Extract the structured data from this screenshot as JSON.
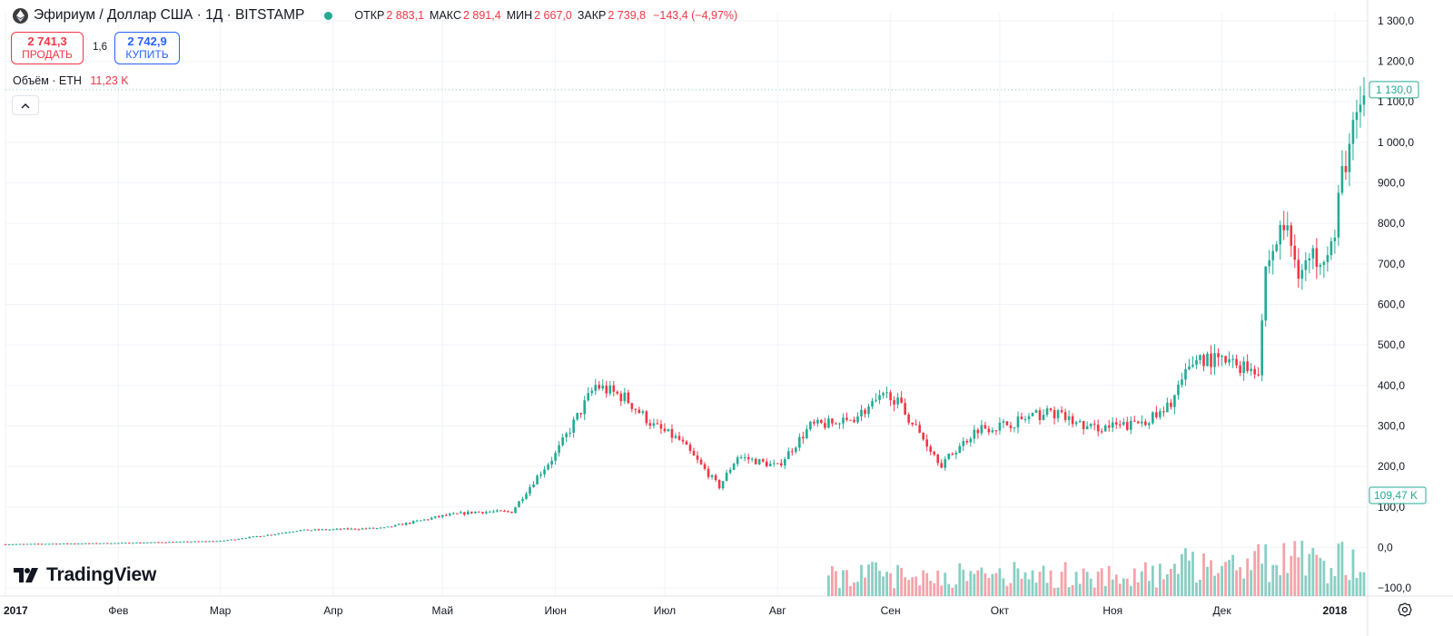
{
  "header": {
    "title": "Эфириум / Доллар США · 1Д · BITSTAMP",
    "open_label": "ОТКР",
    "open_value": "2 883,1",
    "high_label": "МАКС",
    "high_value": "2 891,4",
    "low_label": "МИН",
    "low_value": "2 667,0",
    "close_label": "ЗАКР",
    "close_value": "2 739,8",
    "change": "−143,4 (−4,97%)"
  },
  "trade": {
    "sell_price": "2 741,3",
    "sell_label": "ПРОДАТЬ",
    "spread": "1,6",
    "buy_price": "2 742,9",
    "buy_label": "КУПИТЬ"
  },
  "volume_legend": {
    "label": "Объём · ETH",
    "value": "11,23 K"
  },
  "collapse_icon": "chevron-up-icon",
  "logo": {
    "text": "TradingView",
    "icon": "tradingview-logo-icon"
  },
  "settings_icon": "gear-icon",
  "colors": {
    "up": "#22ab94",
    "down": "#f23645",
    "up_volume": "#89cfc3",
    "down_volume": "#f5a3a9"
  },
  "chart_data": {
    "type": "candlestick",
    "symbol": "Эфириум / Доллар США · 1Д · BITSTAMP",
    "x_range": [
      "2017-01-01",
      "2018-01-10"
    ],
    "x_tick_labels": [
      "2017",
      "Фев",
      "Мар",
      "Апр",
      "Май",
      "Июн",
      "Июл",
      "Авг",
      "Сен",
      "Окт",
      "Ноя",
      "Дек",
      "2018"
    ],
    "y_tick_labels": [
      "1 300,0",
      "1 200,0",
      "1 100,0",
      "1 000,0",
      "900,0",
      "800,0",
      "700,0",
      "600,0",
      "500,0",
      "400,0",
      "300,0",
      "200,0",
      "100,0",
      "0,0",
      "−100,0"
    ],
    "ylim": [
      -120,
      1320
    ],
    "last_price_label": "1 130,0",
    "last_volume_label": "109,47 K",
    "price_keypoints": [
      [
        "2017-01-01",
        8
      ],
      [
        "2017-02-01",
        11
      ],
      [
        "2017-03-01",
        16
      ],
      [
        "2017-03-15",
        32
      ],
      [
        "2017-03-22",
        42
      ],
      [
        "2017-04-15",
        48
      ],
      [
        "2017-05-01",
        78
      ],
      [
        "2017-05-10",
        88
      ],
      [
        "2017-05-20",
        88
      ],
      [
        "2017-05-27",
        175
      ],
      [
        "2017-06-01",
        230
      ],
      [
        "2017-06-12",
        400
      ],
      [
        "2017-06-20",
        370
      ],
      [
        "2017-06-28",
        300
      ],
      [
        "2017-07-05",
        265
      ],
      [
        "2017-07-16",
        150
      ],
      [
        "2017-07-21",
        225
      ],
      [
        "2017-08-01",
        200
      ],
      [
        "2017-08-10",
        300
      ],
      [
        "2017-08-20",
        310
      ],
      [
        "2017-09-01",
        380
      ],
      [
        "2017-09-06",
        320
      ],
      [
        "2017-09-15",
        205
      ],
      [
        "2017-09-25",
        295
      ],
      [
        "2017-10-01",
        300
      ],
      [
        "2017-10-15",
        335
      ],
      [
        "2017-10-25",
        295
      ],
      [
        "2017-11-05",
        300
      ],
      [
        "2017-11-15",
        330
      ],
      [
        "2017-11-24",
        470
      ],
      [
        "2017-12-03",
        455
      ],
      [
        "2017-12-11",
        440
      ],
      [
        "2017-12-13",
        690
      ],
      [
        "2017-12-18",
        800
      ],
      [
        "2017-12-22",
        690
      ],
      [
        "2017-12-27",
        720
      ],
      [
        "2018-01-01",
        760
      ],
      [
        "2018-01-03",
        930
      ],
      [
        "2018-01-06",
        1020
      ],
      [
        "2018-01-09",
        1130
      ]
    ],
    "volume_ylim": [
      0,
      400
    ]
  }
}
